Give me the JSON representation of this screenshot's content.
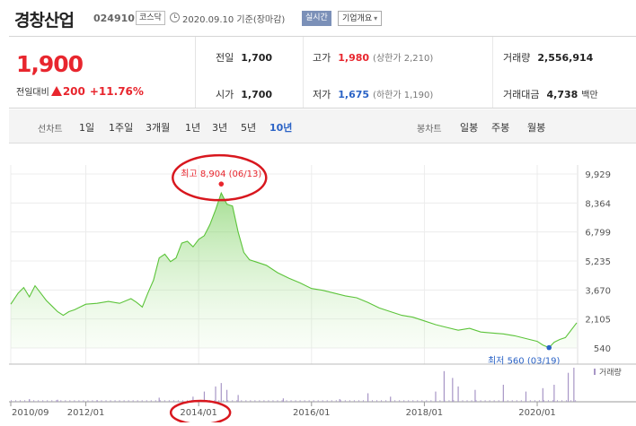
{
  "header": {
    "company_name": "경창산업",
    "code": "024910",
    "market": "코스닥",
    "date_text": "2020.09.10 기준(장마감)",
    "realtime_label": "실시간",
    "company_info_label": "기업개요"
  },
  "summary": {
    "price": "1,900",
    "change_label": "전일대비",
    "change": "200",
    "change_rate": "+11.76%",
    "prev_label": "전일",
    "prev_value": "1,700",
    "open_label": "시가",
    "open_value": "1,700",
    "high_label": "고가",
    "high_value": "1,980",
    "upper_limit": "(상한가 2,210)",
    "low_label": "저가",
    "low_value": "1,675",
    "lower_limit": "(하한가 1,190)",
    "volume_label": "거래량",
    "volume_value": "2,556,914",
    "amount_label": "거래대금",
    "amount_value": "4,738",
    "amount_unit": "백만"
  },
  "tabs": {
    "line_label": "선차트",
    "line_tabs": [
      "1일",
      "1주일",
      "3개월",
      "1년",
      "3년",
      "5년",
      "10년"
    ],
    "active_tab": "10년",
    "candle_label": "봉차트",
    "candle_tabs": [
      "일봉",
      "주봉",
      "월봉"
    ]
  },
  "colors": {
    "up": "#e8262e",
    "down": "#2b63c6",
    "line": "#5cc43a",
    "fill": "#d8f5cc",
    "volume": "#a796c6",
    "annotation_circle": "#d8171e"
  },
  "chart_data": {
    "type": "area",
    "y_ticks": [
      9929,
      8364,
      6799,
      5235,
      3670,
      2105,
      540
    ],
    "ylim": [
      540,
      9929
    ],
    "x_tick_labels": [
      "2010/09",
      "2012/01",
      "2014/01",
      "2016/01",
      "2018/01",
      "2020/01"
    ],
    "x_tick_years": [
      2010.67,
      2012.0,
      2014.0,
      2016.0,
      2018.0,
      2020.0
    ],
    "xlim": [
      2010.67,
      2020.7
    ],
    "high_annotation": "최고 8,904 (06/13)",
    "low_annotation": "최저 560 (03/19)",
    "volume_label": "거래량",
    "points": [
      [
        2010.67,
        2900
      ],
      [
        2010.8,
        3500
      ],
      [
        2010.9,
        3800
      ],
      [
        2011.0,
        3300
      ],
      [
        2011.1,
        3900
      ],
      [
        2011.2,
        3500
      ],
      [
        2011.3,
        3100
      ],
      [
        2011.4,
        2800
      ],
      [
        2011.5,
        2500
      ],
      [
        2011.6,
        2300
      ],
      [
        2011.7,
        2500
      ],
      [
        2011.8,
        2600
      ],
      [
        2011.9,
        2750
      ],
      [
        2012.0,
        2900
      ],
      [
        2012.2,
        2950
      ],
      [
        2012.4,
        3050
      ],
      [
        2012.6,
        2950
      ],
      [
        2012.8,
        3200
      ],
      [
        2012.9,
        3000
      ],
      [
        2013.0,
        2750
      ],
      [
        2013.1,
        3500
      ],
      [
        2013.2,
        4200
      ],
      [
        2013.3,
        5400
      ],
      [
        2013.4,
        5600
      ],
      [
        2013.5,
        5200
      ],
      [
        2013.6,
        5400
      ],
      [
        2013.7,
        6200
      ],
      [
        2013.8,
        6300
      ],
      [
        2013.9,
        6000
      ],
      [
        2014.0,
        6400
      ],
      [
        2014.1,
        6600
      ],
      [
        2014.2,
        7200
      ],
      [
        2014.3,
        8000
      ],
      [
        2014.4,
        8904
      ],
      [
        2014.5,
        8300
      ],
      [
        2014.6,
        8200
      ],
      [
        2014.7,
        6800
      ],
      [
        2014.8,
        5700
      ],
      [
        2014.9,
        5300
      ],
      [
        2015.0,
        5200
      ],
      [
        2015.2,
        5000
      ],
      [
        2015.4,
        4600
      ],
      [
        2015.6,
        4300
      ],
      [
        2015.8,
        4050
      ],
      [
        2016.0,
        3750
      ],
      [
        2016.2,
        3650
      ],
      [
        2016.4,
        3500
      ],
      [
        2016.6,
        3350
      ],
      [
        2016.8,
        3250
      ],
      [
        2017.0,
        3000
      ],
      [
        2017.2,
        2700
      ],
      [
        2017.4,
        2500
      ],
      [
        2017.6,
        2300
      ],
      [
        2017.8,
        2200
      ],
      [
        2018.0,
        2000
      ],
      [
        2018.2,
        1800
      ],
      [
        2018.4,
        1650
      ],
      [
        2018.6,
        1500
      ],
      [
        2018.8,
        1600
      ],
      [
        2019.0,
        1400
      ],
      [
        2019.2,
        1350
      ],
      [
        2019.4,
        1300
      ],
      [
        2019.6,
        1200
      ],
      [
        2019.8,
        1050
      ],
      [
        2020.0,
        900
      ],
      [
        2020.1,
        700
      ],
      [
        2020.21,
        560
      ],
      [
        2020.3,
        850
      ],
      [
        2020.4,
        1000
      ],
      [
        2020.5,
        1100
      ],
      [
        2020.6,
        1500
      ],
      [
        2020.7,
        1900
      ]
    ],
    "volume_bars": [
      [
        2011.0,
        0.08
      ],
      [
        2011.5,
        0.06
      ],
      [
        2012.2,
        0.05
      ],
      [
        2013.3,
        0.12
      ],
      [
        2013.9,
        0.15
      ],
      [
        2014.1,
        0.3
      ],
      [
        2014.3,
        0.45
      ],
      [
        2014.4,
        0.55
      ],
      [
        2014.5,
        0.35
      ],
      [
        2014.7,
        0.2
      ],
      [
        2015.5,
        0.1
      ],
      [
        2016.5,
        0.08
      ],
      [
        2017.0,
        0.25
      ],
      [
        2017.4,
        0.15
      ],
      [
        2018.2,
        0.3
      ],
      [
        2018.35,
        0.9
      ],
      [
        2018.5,
        0.7
      ],
      [
        2018.6,
        0.45
      ],
      [
        2018.9,
        0.35
      ],
      [
        2019.4,
        0.5
      ],
      [
        2019.8,
        0.3
      ],
      [
        2020.1,
        0.4
      ],
      [
        2020.3,
        0.5
      ],
      [
        2020.55,
        0.85
      ],
      [
        2020.65,
        1.0
      ]
    ]
  }
}
